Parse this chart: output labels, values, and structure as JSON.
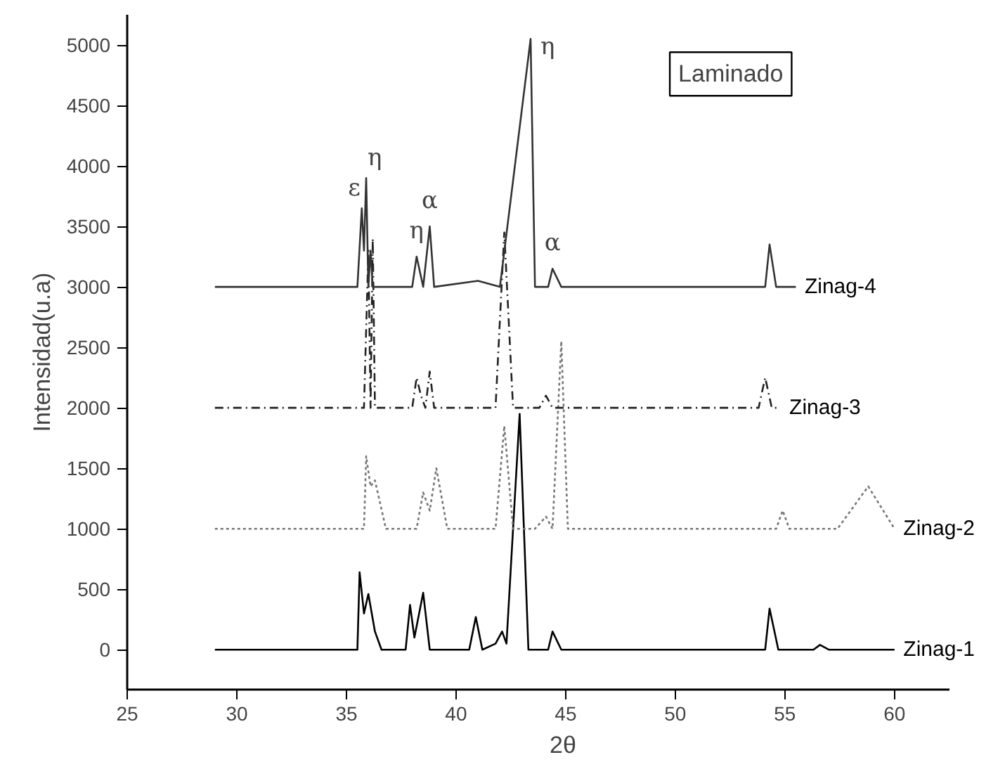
{
  "chart_data": {
    "type": "line",
    "xlabel": "2θ",
    "ylabel": "Intensidad(u.a)",
    "xlim": [
      25,
      62.5
    ],
    "ylim": [
      -330,
      5250
    ],
    "xticks": [
      25,
      30,
      35,
      40,
      45,
      50,
      55,
      60
    ],
    "yticks": [
      0,
      500,
      1000,
      1500,
      2000,
      2500,
      3000,
      3500,
      4000,
      4500,
      5000
    ],
    "grid": false,
    "legend": false,
    "marker": "none",
    "series": [
      {
        "name": "Zinag-1",
        "color": "#000000",
        "line_style": "solid",
        "x": [
          29,
          35.5,
          35.6,
          35.8,
          36.0,
          36.3,
          36.6,
          37.7,
          37.9,
          38.1,
          38.5,
          38.8,
          40.6,
          40.9,
          41.2,
          41.8,
          42.1,
          42.3,
          42.9,
          43.3,
          44.2,
          44.4,
          44.8,
          54.1,
          54.3,
          54.7,
          56.3,
          56.6,
          57.0,
          60
        ],
        "values": [
          0,
          0,
          640,
          300,
          460,
          150,
          0,
          0,
          370,
          100,
          470,
          0,
          0,
          270,
          0,
          50,
          150,
          50,
          1950,
          0,
          0,
          150,
          0,
          0,
          340,
          0,
          0,
          40,
          0,
          0
        ]
      },
      {
        "name": "Zinag-2",
        "color": "#777777",
        "line_style": "dotted",
        "x": [
          29,
          35.8,
          35.9,
          36.1,
          36.3,
          36.8,
          38.2,
          38.5,
          38.8,
          39.1,
          39.6,
          41.8,
          42.2,
          42.6,
          43.6,
          44.1,
          44.4,
          44.8,
          45.1,
          54.6,
          54.9,
          55.2,
          57.4,
          58.8,
          60
        ],
        "values": [
          1000,
          1000,
          1600,
          1350,
          1400,
          1000,
          1000,
          1300,
          1150,
          1500,
          1000,
          1000,
          1850,
          1000,
          1000,
          1100,
          1000,
          2550,
          1000,
          1000,
          1150,
          1000,
          1000,
          1350,
          1000
        ]
      },
      {
        "name": "Zinag-3",
        "color": "#222222",
        "line_style": "dashed",
        "x": [
          29,
          35.8,
          36.0,
          36.1,
          36.2,
          36.3,
          38.0,
          38.2,
          38.4,
          38.6,
          38.8,
          39.0,
          41.8,
          42.2,
          42.6,
          43.8,
          44.1,
          44.4,
          53.8,
          54.1,
          54.4,
          54.8
        ],
        "values": [
          2000,
          2000,
          3300,
          2000,
          3400,
          2000,
          2000,
          2250,
          2100,
          2000,
          2300,
          2000,
          2000,
          3450,
          2000,
          2000,
          2100,
          2000,
          2000,
          2250,
          2000,
          2000
        ]
      },
      {
        "name": "Zinag-4",
        "color": "#333333",
        "line_style": "solid",
        "x": [
          29,
          35.5,
          35.7,
          35.8,
          35.9,
          36.0,
          36.1,
          36.2,
          38.0,
          38.2,
          38.5,
          38.8,
          39.0,
          41.0,
          42.0,
          43.4,
          43.6,
          44.2,
          44.4,
          44.8,
          54.1,
          54.3,
          54.6,
          55.5
        ],
        "values": [
          3000,
          3000,
          3650,
          3300,
          3900,
          3000,
          3300,
          3000,
          3000,
          3250,
          3000,
          3500,
          3000,
          3050,
          3000,
          5050,
          3000,
          3000,
          3150,
          3000,
          3000,
          3350,
          3000,
          3000
        ]
      }
    ],
    "annotations": [
      {
        "text": "ε",
        "x": 35.7,
        "y": 3650
      },
      {
        "text": "η",
        "x": 35.9,
        "y": 3900
      },
      {
        "text": "η",
        "x": 38.2,
        "y": 3250
      },
      {
        "text": "α",
        "x": 38.8,
        "y": 3500
      },
      {
        "text": "η",
        "x": 43.4,
        "y": 5050
      },
      {
        "text": "α",
        "x": 44.4,
        "y": 3150
      },
      "Laminado"
    ]
  }
}
